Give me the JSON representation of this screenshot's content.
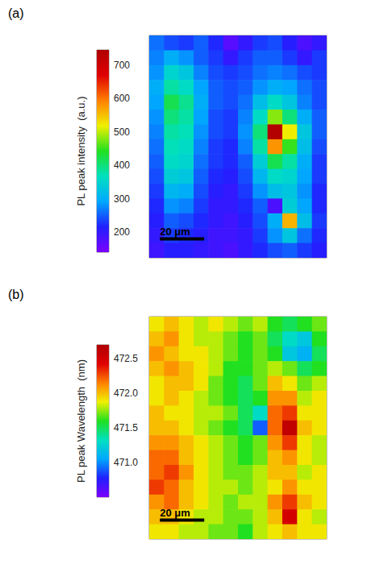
{
  "chart_data": [
    {
      "type": "heatmap",
      "panel": "(a)",
      "colorbar_title": "PL peak intensity  (a.u.)",
      "xlim": [
        0,
        80
      ],
      "ylim": [
        0,
        100
      ],
      "tick_labels": false,
      "scale_bar": {
        "length": 20,
        "label": "20 μm"
      },
      "colorbar_range": [
        140,
        745
      ],
      "colorbar_ticks": [
        200,
        300,
        400,
        500,
        600,
        700
      ],
      "cells": [
        [
          260,
          240,
          230,
          250,
          220,
          170,
          200,
          230,
          240,
          210,
          180,
          200
        ],
        [
          270,
          300,
          280,
          250,
          230,
          200,
          230,
          250,
          250,
          230,
          200,
          230
        ],
        [
          280,
          350,
          330,
          270,
          240,
          230,
          240,
          260,
          270,
          260,
          240,
          230
        ],
        [
          300,
          380,
          360,
          290,
          250,
          240,
          250,
          280,
          300,
          290,
          260,
          240
        ],
        [
          290,
          420,
          390,
          300,
          250,
          240,
          260,
          320,
          360,
          330,
          270,
          240
        ],
        [
          280,
          400,
          380,
          290,
          240,
          230,
          270,
          360,
          480,
          400,
          300,
          250
        ],
        [
          270,
          380,
          370,
          280,
          240,
          230,
          280,
          400,
          740,
          520,
          330,
          250
        ],
        [
          260,
          370,
          360,
          270,
          230,
          220,
          270,
          380,
          580,
          450,
          320,
          240
        ],
        [
          250,
          360,
          350,
          260,
          230,
          220,
          250,
          340,
          420,
          380,
          300,
          230
        ],
        [
          240,
          340,
          330,
          250,
          220,
          210,
          240,
          310,
          360,
          350,
          290,
          230
        ],
        [
          230,
          310,
          300,
          240,
          210,
          200,
          230,
          280,
          320,
          330,
          280,
          220
        ],
        [
          220,
          280,
          270,
          230,
          200,
          200,
          220,
          250,
          180,
          340,
          290,
          220
        ],
        [
          210,
          250,
          240,
          220,
          200,
          190,
          210,
          240,
          300,
          560,
          320,
          230
        ],
        [
          200,
          230,
          220,
          210,
          190,
          190,
          200,
          230,
          280,
          330,
          260,
          220
        ],
        [
          190,
          210,
          210,
          200,
          190,
          180,
          200,
          220,
          240,
          250,
          230,
          210
        ]
      ]
    },
    {
      "type": "heatmap",
      "panel": "(b)",
      "colorbar_title": "PL peak Wavelength  (nm)",
      "xlim": [
        0,
        80
      ],
      "ylim": [
        0,
        100
      ],
      "tick_labels": false,
      "scale_bar": {
        "length": 20,
        "label": "20 μm"
      },
      "colorbar_range": [
        470.5,
        472.7
      ],
      "colorbar_ticks": [
        {
          "value": 471,
          "label": "471.0"
        },
        471.5,
        {
          "value": 472,
          "label": "472.0"
        },
        472.5
      ],
      "cells": [
        [
          471.9,
          472.0,
          471.9,
          471.8,
          471.9,
          471.8,
          471.7,
          471.8,
          471.6,
          471.5,
          471.6,
          471.7
        ],
        [
          472.0,
          472.1,
          471.9,
          471.8,
          471.8,
          471.7,
          471.6,
          471.7,
          471.5,
          471.3,
          471.2,
          471.6
        ],
        [
          472.1,
          472.0,
          471.9,
          471.9,
          471.8,
          471.7,
          471.6,
          471.7,
          471.6,
          471.2,
          471.1,
          471.5
        ],
        [
          472.0,
          472.1,
          472.0,
          471.9,
          471.8,
          471.6,
          471.6,
          471.7,
          471.8,
          471.7,
          471.5,
          471.6
        ],
        [
          471.9,
          472.0,
          472.0,
          471.9,
          471.7,
          471.6,
          471.5,
          471.7,
          472.0,
          471.9,
          471.7,
          471.8
        ],
        [
          471.9,
          472.0,
          471.9,
          471.8,
          471.7,
          471.6,
          471.5,
          471.6,
          472.1,
          472.1,
          471.8,
          471.9
        ],
        [
          472.0,
          471.9,
          471.9,
          471.8,
          471.8,
          471.7,
          471.5,
          471.3,
          472.2,
          472.3,
          471.9,
          471.9
        ],
        [
          472.0,
          472.0,
          471.9,
          471.8,
          471.7,
          471.6,
          471.5,
          470.9,
          472.2,
          472.6,
          472.0,
          471.9
        ],
        [
          472.1,
          472.1,
          472.0,
          471.9,
          471.8,
          471.7,
          471.6,
          471.7,
          472.1,
          472.3,
          471.9,
          471.8
        ],
        [
          472.2,
          472.2,
          472.0,
          471.9,
          471.8,
          471.7,
          471.6,
          471.7,
          472.0,
          472.1,
          471.9,
          471.8
        ],
        [
          472.2,
          472.3,
          472.1,
          471.9,
          471.8,
          471.7,
          471.7,
          471.8,
          472.0,
          472.0,
          471.8,
          471.9
        ],
        [
          472.3,
          472.2,
          472.0,
          471.9,
          471.8,
          471.8,
          471.7,
          471.8,
          471.9,
          472.1,
          471.9,
          471.9
        ],
        [
          472.1,
          472.2,
          472.0,
          471.9,
          471.8,
          471.7,
          471.8,
          471.8,
          472.1,
          472.3,
          472.0,
          471.9
        ],
        [
          472.0,
          472.0,
          471.9,
          471.8,
          471.8,
          471.7,
          471.7,
          471.8,
          472.0,
          472.5,
          471.9,
          471.8
        ],
        [
          471.9,
          471.9,
          471.8,
          471.8,
          471.7,
          471.7,
          471.6,
          471.8,
          471.9,
          472.0,
          471.9,
          471.9
        ]
      ]
    }
  ]
}
